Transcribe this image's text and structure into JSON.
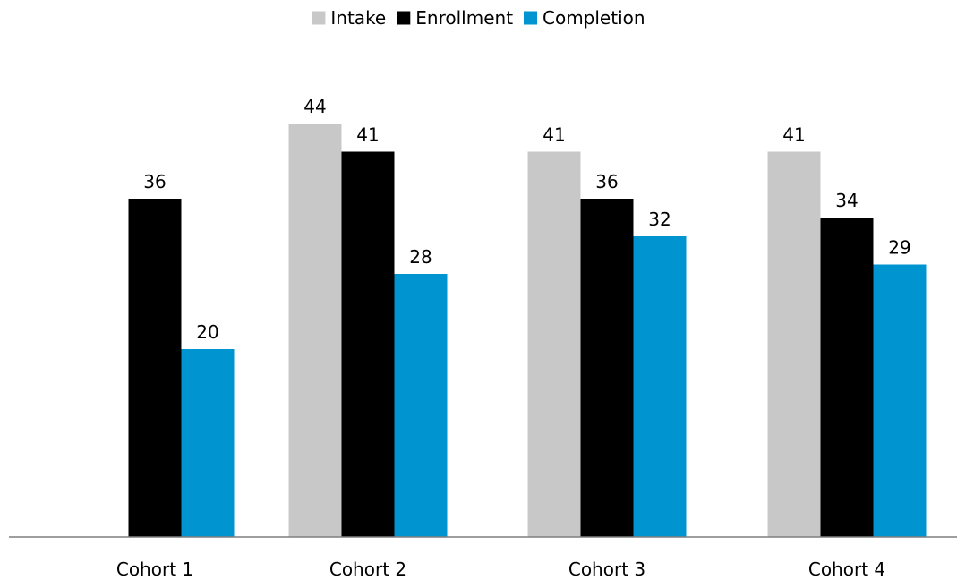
{
  "chart_data": {
    "type": "bar",
    "categories": [
      "Cohort 1",
      "Cohort 2",
      "Cohort 3",
      "Cohort 4"
    ],
    "series": [
      {
        "name": "Intake",
        "color": "#c8c8c8",
        "values": [
          null,
          44,
          41,
          41
        ]
      },
      {
        "name": "Enrollment",
        "color": "#000000",
        "values": [
          36,
          41,
          36,
          34
        ]
      },
      {
        "name": "Completion",
        "color": "#0094d0",
        "values": [
          20,
          28,
          32,
          29
        ]
      }
    ],
    "ylim": [
      0,
      44
    ],
    "grid": false,
    "legend_position": "top-center",
    "data_labels": true
  }
}
